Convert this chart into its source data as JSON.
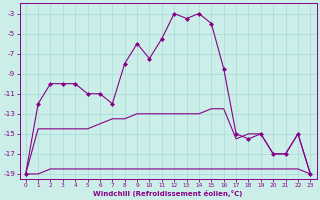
{
  "xlabel": "Windchill (Refroidissement éolien,°C)",
  "background_color": "#cceee8",
  "grid_color": "#aadddd",
  "line_color": "#880088",
  "xlim": [
    -0.5,
    23.5
  ],
  "ylim": [
    -19.5,
    -2.0
  ],
  "yticks": [
    -19,
    -17,
    -15,
    -13,
    -11,
    -9,
    -7,
    -5,
    -3
  ],
  "xticks": [
    0,
    1,
    2,
    3,
    4,
    5,
    6,
    7,
    8,
    9,
    10,
    11,
    12,
    13,
    14,
    15,
    16,
    17,
    18,
    19,
    20,
    21,
    22,
    23
  ],
  "series1": {
    "x": [
      0,
      1,
      2,
      3,
      4,
      5,
      6,
      7,
      8,
      9,
      10,
      11,
      12,
      13,
      14,
      15,
      16,
      17,
      18,
      19,
      20,
      21,
      22,
      23
    ],
    "y": [
      -19,
      -12,
      -10,
      -10,
      -10,
      -11,
      -11,
      -12,
      -8,
      -6,
      -7.5,
      -5.5,
      -3,
      -3.5,
      -3,
      -4,
      -8.5,
      -15,
      -15.5,
      -15,
      -17,
      -17,
      -15,
      -19
    ]
  },
  "series2": {
    "x": [
      0,
      1,
      2,
      3,
      4,
      5,
      6,
      7,
      8,
      9,
      10,
      11,
      12,
      13,
      14,
      15,
      16,
      17,
      18,
      19,
      20,
      21,
      22,
      23
    ],
    "y": [
      -19,
      -19,
      -18.5,
      -18.5,
      -18.5,
      -18.5,
      -18.5,
      -18.5,
      -18.5,
      -18.5,
      -18.5,
      -18.5,
      -18.5,
      -18.5,
      -18.5,
      -18.5,
      -18.5,
      -18.5,
      -18.5,
      -18.5,
      -18.5,
      -18.5,
      -18.5,
      -19
    ]
  },
  "series3": {
    "x": [
      0,
      1,
      2,
      3,
      4,
      5,
      6,
      7,
      8,
      9,
      10,
      11,
      12,
      13,
      14,
      15,
      16,
      17,
      18,
      19,
      20,
      21,
      22,
      23
    ],
    "y": [
      -19,
      -14.5,
      -14.5,
      -14.5,
      -14.5,
      -14.5,
      -14,
      -13.5,
      -13.5,
      -13,
      -13,
      -13,
      -13,
      -13,
      -13,
      -12.5,
      -12.5,
      -15.5,
      -15,
      -15,
      -17,
      -17,
      -15,
      -19
    ]
  }
}
